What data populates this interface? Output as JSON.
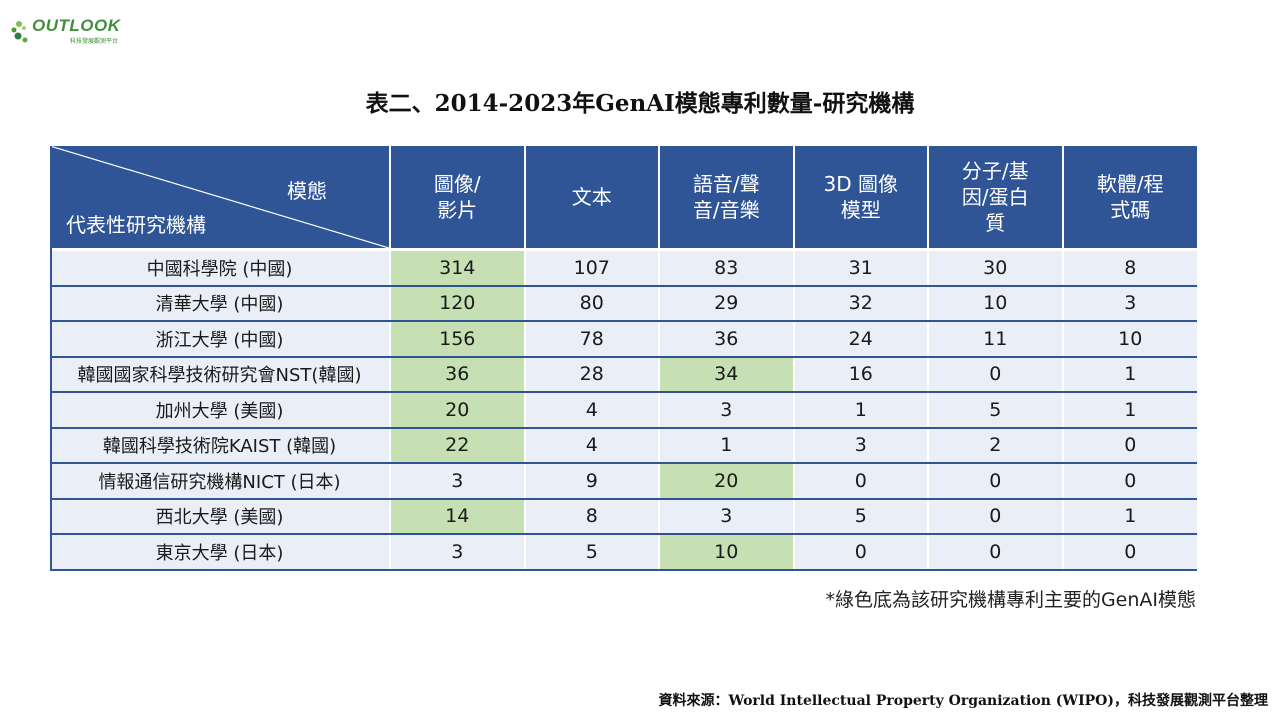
{
  "logo": {
    "brand": "OUTLOOK",
    "subtitle": "科技發展觀測平台"
  },
  "title": "表二、2014-2023年GenAI模態專利數量-研究機構",
  "table": {
    "corner_top": "模態",
    "corner_bottom": "代表性研究機構",
    "columns": [
      "圖像/\n影片",
      "文本",
      "語音/聲\n音/音樂",
      "3D 圖像\n模型",
      "分子/基\n因/蛋白\n質",
      "軟體/程\n式碼"
    ],
    "rows": [
      {
        "name": "中國科學院 (中國)",
        "values": [
          "314",
          "107",
          "83",
          "31",
          "30",
          "8"
        ],
        "highlight": [
          0
        ]
      },
      {
        "name": "清華大學 (中國)",
        "values": [
          "120",
          "80",
          "29",
          "32",
          "10",
          "3"
        ],
        "highlight": [
          0
        ]
      },
      {
        "name": "浙江大學 (中國)",
        "values": [
          "156",
          "78",
          "36",
          "24",
          "11",
          "10"
        ],
        "highlight": [
          0
        ]
      },
      {
        "name": "韓國國家科學技術研究會NST(韓國)",
        "values": [
          "36",
          "28",
          "34",
          "16",
          "0",
          "1"
        ],
        "highlight": [
          0,
          2
        ]
      },
      {
        "name": "加州大學 (美國)",
        "values": [
          "20",
          "4",
          "3",
          "1",
          "5",
          "1"
        ],
        "highlight": [
          0
        ]
      },
      {
        "name": "韓國科學技術院KAIST (韓國)",
        "values": [
          "22",
          "4",
          "1",
          "3",
          "2",
          "0"
        ],
        "highlight": [
          0
        ]
      },
      {
        "name": "情報通信研究機構NICT (日本)",
        "values": [
          "3",
          "9",
          "20",
          "0",
          "0",
          "0"
        ],
        "highlight": [
          2
        ]
      },
      {
        "name": "西北大學 (美國)",
        "values": [
          "14",
          "8",
          "3",
          "5",
          "0",
          "1"
        ],
        "highlight": [
          0
        ]
      },
      {
        "name": "東京大學 (日本)",
        "values": [
          "3",
          "5",
          "10",
          "0",
          "0",
          "0"
        ],
        "highlight": [
          2
        ]
      }
    ]
  },
  "note": "*綠色底為該研究機構專利主要的GenAI模態",
  "source": "資料來源：World Intellectual Property Organization (WIPO)，科技發展觀測平台整理",
  "colors": {
    "header": "#2f5597",
    "row": "#e9eef7",
    "highlight": "#c6e0b4",
    "logo": "#3f8f3a"
  }
}
